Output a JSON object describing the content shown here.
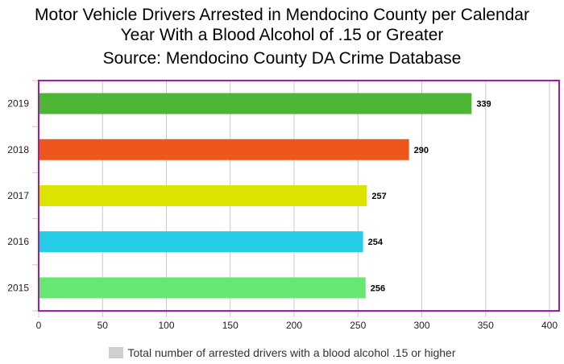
{
  "title_lines": [
    "Motor Vehicle Drivers Arrested in Mendocino County per Calendar",
    "Year With a Blood Alcohol of .15 or Greater",
    "Source: Mendocino County DA Crime Database"
  ],
  "chart_data": {
    "type": "bar",
    "orientation": "horizontal",
    "categories": [
      "2019",
      "2018",
      "2017",
      "2016",
      "2015"
    ],
    "values": [
      339,
      290,
      257,
      254,
      256
    ],
    "colors": [
      "#4db634",
      "#ee561c",
      "#dde300",
      "#24cce6",
      "#66e672"
    ],
    "xlim": [
      0,
      400
    ],
    "xticks": [
      "0",
      "50",
      "100",
      "150",
      "200",
      "250",
      "300",
      "350",
      "400"
    ],
    "grid": true,
    "legend": {
      "position": "bottom",
      "entries": [
        "Total number of arrested drivers with a blood alcohol .15 or higher"
      ],
      "swatch_color": "#cfcfcf"
    },
    "plot_border_color": "#a21caf"
  }
}
